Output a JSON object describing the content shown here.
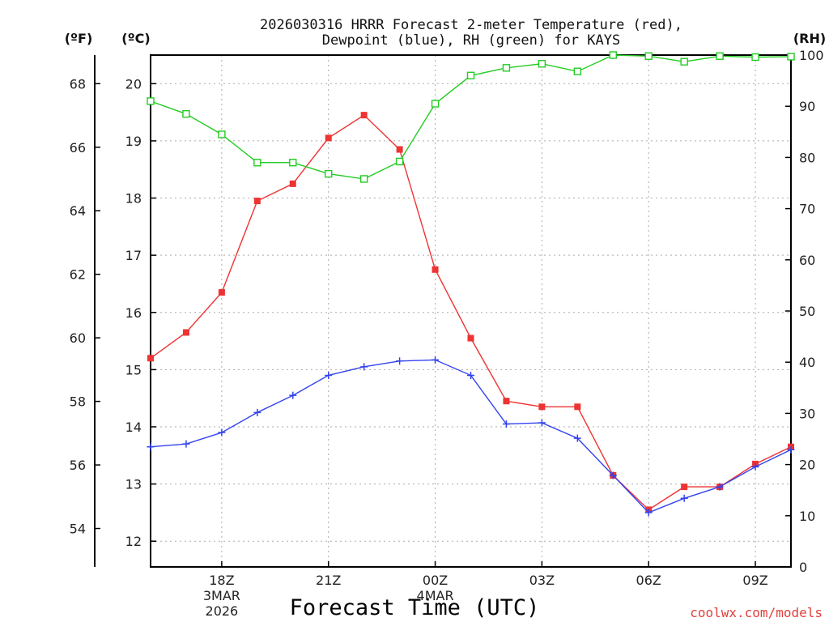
{
  "chart_data": {
    "type": "line",
    "title": [
      "2026030316 HRRR Forecast 2-meter Temperature (red),",
      "Dewpoint (blue), RH (green) for KAYS"
    ],
    "xlabel": "Forecast Time (UTC)",
    "credit": "coolwx.com/models",
    "units": {
      "left_f": "(ºF)",
      "left_c": "(ºC)",
      "right": "(RH)"
    },
    "x": [
      16,
      17,
      18,
      19,
      20,
      21,
      22,
      23,
      24,
      25,
      26,
      27,
      28,
      29,
      30,
      31,
      32,
      33,
      34
    ],
    "xlim": [
      16,
      34
    ],
    "xticks": [
      {
        "x": 18,
        "lines": [
          "18Z",
          "3MAR",
          "2026"
        ]
      },
      {
        "x": 21,
        "lines": [
          "21Z"
        ]
      },
      {
        "x": 24,
        "lines": [
          "00Z",
          "4MAR"
        ]
      },
      {
        "x": 27,
        "lines": [
          "03Z"
        ]
      },
      {
        "x": 30,
        "lines": [
          "06Z"
        ]
      },
      {
        "x": 33,
        "lines": [
          "09Z"
        ]
      }
    ],
    "ylim_c": [
      11.55,
      20.5
    ],
    "yticks_c": [
      "12",
      "13",
      "14",
      "15",
      "16",
      "17",
      "18",
      "19",
      "20"
    ],
    "yticks_f": [
      "54",
      "56",
      "58",
      "60",
      "62",
      "64",
      "66",
      "68"
    ],
    "ylim_rh": [
      0,
      100
    ],
    "yticks_rh": [
      "0",
      "10",
      "20",
      "30",
      "40",
      "50",
      "60",
      "70",
      "80",
      "90",
      "100"
    ],
    "grid": true,
    "series": [
      {
        "name": "Temperature",
        "color": "#ee3333",
        "marker": "filled-square",
        "unit": "C",
        "values": [
          15.2,
          15.65,
          16.35,
          17.95,
          18.25,
          19.05,
          19.45,
          18.85,
          16.75,
          15.55,
          14.45,
          14.35,
          14.35,
          13.15,
          12.55,
          12.95,
          12.95,
          13.35,
          13.65
        ]
      },
      {
        "name": "Dewpoint",
        "color": "#3344ee",
        "marker": "plus",
        "unit": "C",
        "values": [
          13.65,
          13.7,
          13.9,
          14.25,
          14.55,
          14.9,
          15.05,
          15.15,
          15.17,
          14.9,
          14.05,
          14.07,
          13.8,
          13.15,
          12.5,
          12.75,
          12.95,
          13.3,
          13.6
        ]
      },
      {
        "name": "RH",
        "color": "#22cc22",
        "marker": "open-square",
        "unit": "%",
        "values": [
          91,
          88.5,
          84.5,
          79,
          79,
          76.8,
          75.8,
          79.2,
          90.5,
          96,
          97.5,
          98.3,
          96.8,
          100,
          99.8,
          98.7,
          99.8,
          99.6,
          99.7
        ]
      }
    ]
  }
}
